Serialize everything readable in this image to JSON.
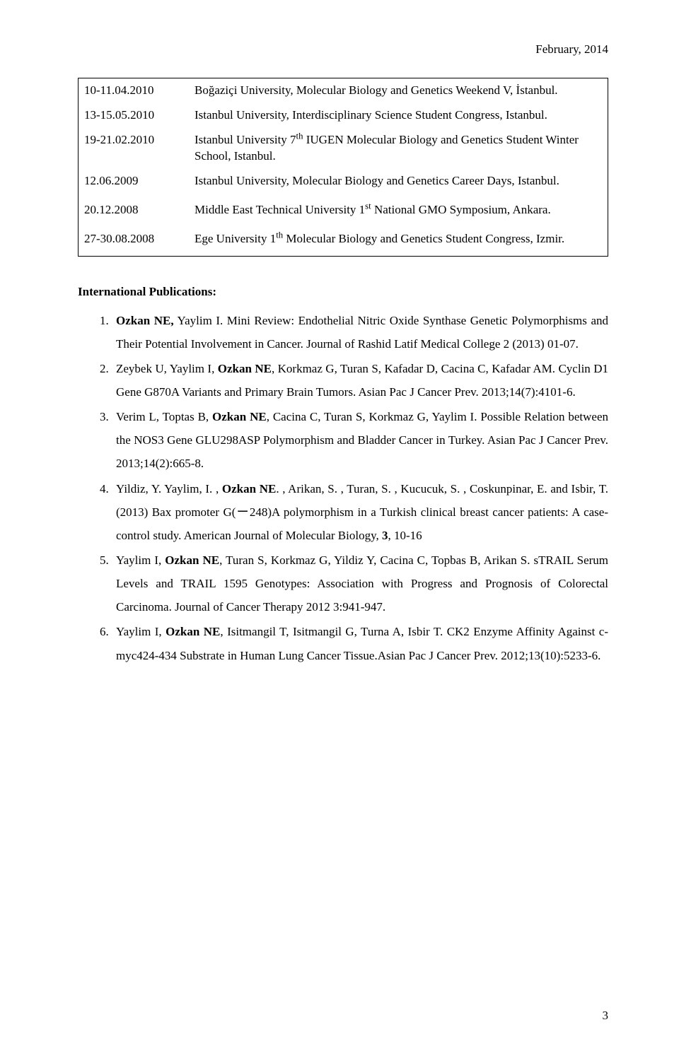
{
  "header": {
    "date": "February, 2014"
  },
  "events": [
    {
      "date": "10-11.04.2010",
      "desc": "Boğaziçi University, Molecular Biology and Genetics Weekend V, İstanbul."
    },
    {
      "date": "13-15.05.2010",
      "desc": "Istanbul University, Interdisciplinary Science Student Congress, Istanbul."
    },
    {
      "date": "19-21.02.2010",
      "desc_pre": "Istanbul University 7",
      "sup": "th",
      "desc_post": " IUGEN Molecular Biology and Genetics Student Winter School, Istanbul."
    },
    {
      "date": "12.06.2009",
      "desc": "Istanbul University, Molecular Biology and Genetics Career Days, Istanbul."
    },
    {
      "date": "20.12.2008",
      "desc_pre": "Middle East Technical University 1",
      "sup": "st",
      "desc_post": " National GMO Symposium, Ankara."
    },
    {
      "date": "27-30.08.2008",
      "desc_pre": "Ege University 1",
      "sup": "th",
      "desc_post": " Molecular Biology and Genetics Student Congress, Izmir."
    }
  ],
  "section_heading": "International Publications:",
  "pub1": {
    "a": "Ozkan NE,",
    "b": " Yaylim I.  Mini Review: Endothelial Nitric Oxide Synthase Genetic Polymorphisms and Their Potential Involvement in Cancer. Journal of Rashid Latif Medical College 2 (2013) 01-07."
  },
  "pub2": {
    "a": "Zeybek U, Yaylim I, ",
    "b": "Ozkan NE",
    "c": ", Korkmaz G, Turan S, Kafadar D, Cacina C, Kafadar AM. Cyclin D1 Gene G870A Variants and Primary Brain Tumors. Asian Pac J Cancer Prev. 2013;14(7):4101-6."
  },
  "pub3": {
    "a": "Verim L, Toptas B, ",
    "b": "Ozkan NE",
    "c": ", Cacina C, Turan S, Korkmaz G, Yaylim I. Possible Relation between the NOS3 Gene GLU298ASP Polymorphism and Bladder Cancer in Turkey. Asian Pac J Cancer Prev. 2013;14(2):665-8."
  },
  "pub4": {
    "a": "Yildiz, Y. Yaylim, I. , ",
    "b": "Ozkan NE",
    "c": ". , Arikan, S. , Turan, S. , Kucucuk, S. , Coskunpinar, E. and Isbir, T. (2013) Bax promoter G(ー248)A polymorphism in a Turkish clinical breast cancer patients: A case-control study. American Journal of Molecular Biology, ",
    "d": "3",
    "e": ", 10-16"
  },
  "pub5": {
    "a": "Yaylim I, ",
    "b": "Ozkan NE",
    "c": ", Turan S, Korkmaz G, Yildiz Y, Cacina C, Topbas B, Arikan S. sTRAIL Serum Levels and TRAIL 1595 Genotypes: Association with Progress and Prognosis of Colorectal Carcinoma. Journal of Cancer Therapy 2012 3:941-947."
  },
  "pub6": {
    "a": "Yaylim I, ",
    "b": "Ozkan NE",
    "c": ", Isitmangil T, Isitmangil G, Turna A, Isbir T. CK2 Enzyme Affinity Against c-myc424-434 Substrate in Human Lung Cancer Tissue.Asian Pac J Cancer Prev. 2012;13(10):5233-6."
  },
  "page_number": "3"
}
